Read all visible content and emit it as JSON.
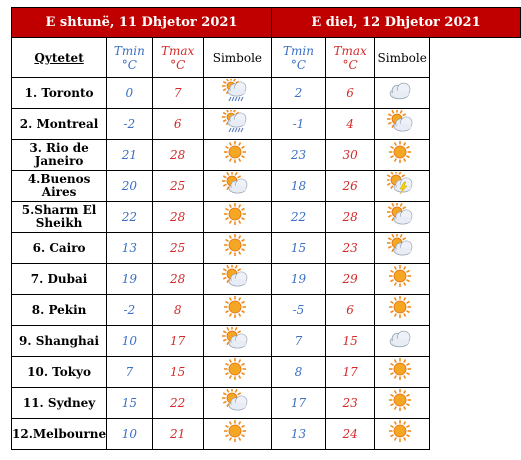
{
  "header": {
    "day1": "E shtunë, 11 Dhjetor 2021",
    "day2": "E diel, 12 Dhjetor 2021"
  },
  "columns": {
    "city": "Qytetet",
    "tmin": "Tmin",
    "tmax": "Tmax",
    "unit": "°C",
    "symbol": "Simbole"
  },
  "rows": [
    {
      "city": "1. Toronto",
      "d1": {
        "tmin": "0",
        "tmax": "7",
        "icon": "rain-cloud-sun-icon"
      },
      "d2": {
        "tmin": "2",
        "tmax": "6",
        "icon": "cloud-icon"
      }
    },
    {
      "city": "2. Montreal",
      "d1": {
        "tmin": "-2",
        "tmax": "6",
        "icon": "rain-cloud-sun-icon"
      },
      "d2": {
        "tmin": "-1",
        "tmax": "4",
        "icon": "partly-cloudy-icon"
      }
    },
    {
      "city": "3. Rio de Janeiro",
      "d1": {
        "tmin": "21",
        "tmax": "28",
        "icon": "sun-icon"
      },
      "d2": {
        "tmin": "23",
        "tmax": "30",
        "icon": "sun-icon"
      }
    },
    {
      "city": "4.Buenos Aires",
      "d1": {
        "tmin": "20",
        "tmax": "25",
        "icon": "partly-cloudy-icon"
      },
      "d2": {
        "tmin": "18",
        "tmax": "26",
        "icon": "thunderstorm-icon"
      }
    },
    {
      "city": "5.Sharm El Sheikh",
      "d1": {
        "tmin": "22",
        "tmax": "28",
        "icon": "sun-icon"
      },
      "d2": {
        "tmin": "22",
        "tmax": "28",
        "icon": "partly-cloudy-icon"
      }
    },
    {
      "city": "6. Cairo",
      "d1": {
        "tmin": "13",
        "tmax": "25",
        "icon": "sun-icon"
      },
      "d2": {
        "tmin": "15",
        "tmax": "23",
        "icon": "partly-cloudy-icon"
      }
    },
    {
      "city": "7. Dubai",
      "d1": {
        "tmin": "19",
        "tmax": "28",
        "icon": "partly-cloudy-icon"
      },
      "d2": {
        "tmin": "19",
        "tmax": "29",
        "icon": "sun-icon"
      }
    },
    {
      "city": "8. Pekin",
      "d1": {
        "tmin": "-2",
        "tmax": "8",
        "icon": "sun-icon"
      },
      "d2": {
        "tmin": "-5",
        "tmax": "6",
        "icon": "sun-icon"
      }
    },
    {
      "city": "9. Shanghai",
      "d1": {
        "tmin": "10",
        "tmax": "17",
        "icon": "partly-cloudy-icon"
      },
      "d2": {
        "tmin": "7",
        "tmax": "15",
        "icon": "cloud-icon"
      }
    },
    {
      "city": "10. Tokyo",
      "d1": {
        "tmin": "7",
        "tmax": "15",
        "icon": "sun-icon"
      },
      "d2": {
        "tmin": "8",
        "tmax": "17",
        "icon": "sun-icon"
      }
    },
    {
      "city": "11. Sydney",
      "d1": {
        "tmin": "15",
        "tmax": "22",
        "icon": "partly-cloudy-icon"
      },
      "d2": {
        "tmin": "17",
        "tmax": "23",
        "icon": "sun-icon"
      }
    },
    {
      "city": "12.Melbourne",
      "d1": {
        "tmin": "10",
        "tmax": "21",
        "icon": "sun-icon"
      },
      "d2": {
        "tmin": "13",
        "tmax": "24",
        "icon": "sun-icon"
      }
    }
  ],
  "colors": {
    "header_bg": "#c00000",
    "tmin": "#3a6fc4",
    "tmax": "#d42a2a",
    "sun": "#f08a1c",
    "cloud": "#c9d2e0"
  }
}
